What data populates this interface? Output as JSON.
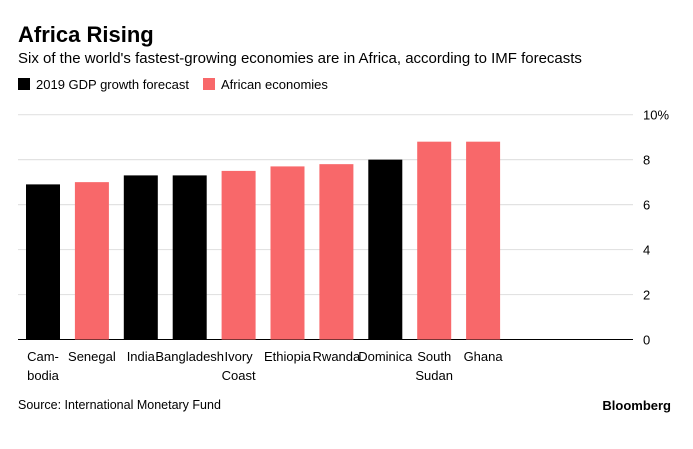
{
  "chart_data": {
    "type": "bar",
    "title": "Africa Rising",
    "subtitle": "Six of the world's fastest-growing economies are in Africa, according to IMF forecasts",
    "categories": [
      [
        "Cam-",
        "bodia"
      ],
      [
        "Senegal"
      ],
      [
        "India"
      ],
      [
        "Bangladesh"
      ],
      [
        "Ivory",
        "Coast"
      ],
      [
        "Ethiopia"
      ],
      [
        "Rwanda"
      ],
      [
        "Dominica"
      ],
      [
        "South",
        "Sudan"
      ],
      [
        "Ghana"
      ]
    ],
    "values": [
      6.9,
      7.0,
      7.3,
      7.3,
      7.5,
      7.7,
      7.8,
      8.0,
      8.8,
      8.8
    ],
    "african": [
      false,
      true,
      false,
      false,
      true,
      true,
      true,
      false,
      true,
      true
    ],
    "legend": [
      {
        "name": "2019 GDP growth forecast",
        "color": "#000000"
      },
      {
        "name": "African economies",
        "color": "#f8686a"
      }
    ],
    "ylim": [
      0,
      10
    ],
    "yticks": [
      "0",
      "2",
      "4",
      "6",
      "8",
      "10%"
    ],
    "ytick_values": [
      0,
      2,
      4,
      6,
      8,
      10
    ],
    "grid": true,
    "y_axis_side": "right",
    "legend_placement": "top-left",
    "source": "Source: International Monetary Fund",
    "brand": "Bloomberg"
  }
}
